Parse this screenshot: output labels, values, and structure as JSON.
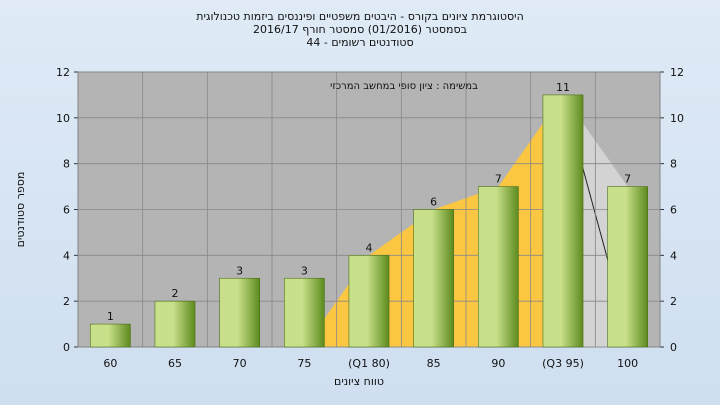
{
  "title_lines": [
    "היסטוגרמת ציונים בקורס - היבטים משפטיים ופיננסים ביזמות טכנולוגית",
    "בסמסטר  (01/2016)  סמסטר חורף 2016/17",
    "סטודנטים רשומים - 44"
  ],
  "chart_data": {
    "type": "bar",
    "categories": [
      "60",
      "65",
      "70",
      "75",
      "(Q1 80)",
      "85",
      "90",
      "(Q3 95)",
      "100"
    ],
    "values": [
      1,
      2,
      3,
      3,
      4,
      6,
      7,
      11,
      7
    ],
    "data_labels": [
      "1",
      "2",
      "3",
      "3",
      "4",
      "6",
      "7",
      "11",
      "7"
    ],
    "xlabel": "טווח ציונים",
    "ylabel": "מספר סטודנטים",
    "ylim": [
      0,
      12
    ],
    "yticks": [
      0,
      2,
      4,
      6,
      8,
      10,
      12
    ],
    "grid": true,
    "annotation": "במשימה : ציון סופי במחשב המרכזי",
    "quartile_band": {
      "from_category": "(Q1 80)",
      "to_category": "(Q3 95)"
    },
    "colors": {
      "bar_light": "#c9e08a",
      "bar_dark": "#5c8a1e",
      "plot_bg": "#b4b4b4",
      "band": "#ffc83d",
      "band_tail": "#d6d6d6"
    }
  }
}
